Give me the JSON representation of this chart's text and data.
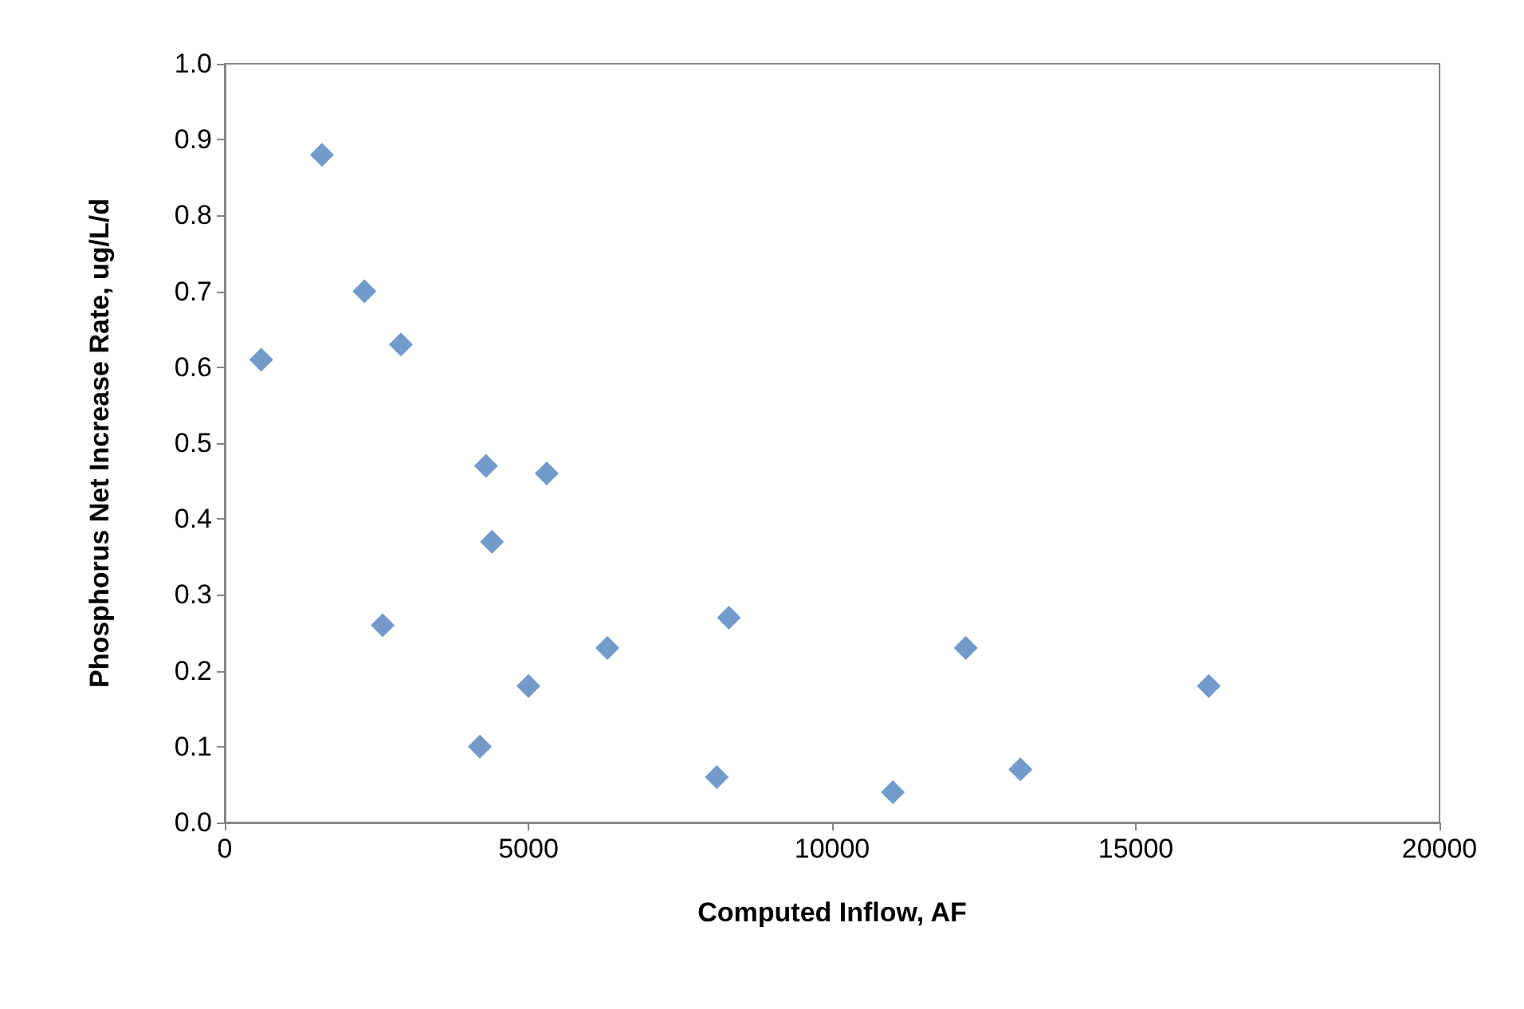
{
  "chart_data": {
    "type": "scatter",
    "xlabel": "Computed Inflow, AF",
    "ylabel": "Phosphorus Net Increase Rate, ug/L/d",
    "x": [
      600,
      1600,
      2300,
      2900,
      2600,
      4300,
      4400,
      5300,
      4200,
      5000,
      6300,
      8300,
      8100,
      11000,
      12200,
      13100,
      16200
    ],
    "values": [
      0.61,
      0.88,
      0.7,
      0.63,
      0.26,
      0.47,
      0.37,
      0.46,
      0.1,
      0.18,
      0.23,
      0.27,
      0.06,
      0.04,
      0.23,
      0.07,
      0.18
    ],
    "color": "#4f81bd",
    "marker": "diamond",
    "xlim": [
      0,
      20000
    ],
    "xticks": [
      0,
      5000,
      10000,
      15000,
      20000
    ],
    "ylim": [
      0,
      1
    ],
    "yticks": [
      {
        "value": 0,
        "label": "0.0"
      },
      {
        "value": 0.1,
        "label": "0.1"
      },
      {
        "value": 0.2,
        "label": "0.2"
      },
      {
        "value": 0.3,
        "label": "0.3"
      },
      {
        "value": 0.4,
        "label": "0.4"
      },
      {
        "value": 0.5,
        "label": "0.5"
      },
      {
        "value": 0.6,
        "label": "0.6"
      },
      {
        "value": 0.7,
        "label": "0.7"
      },
      {
        "value": 0.8,
        "label": "0.8"
      },
      {
        "value": 0.9,
        "label": "0.9"
      },
      {
        "value": 1,
        "label": "1.0"
      }
    ]
  }
}
